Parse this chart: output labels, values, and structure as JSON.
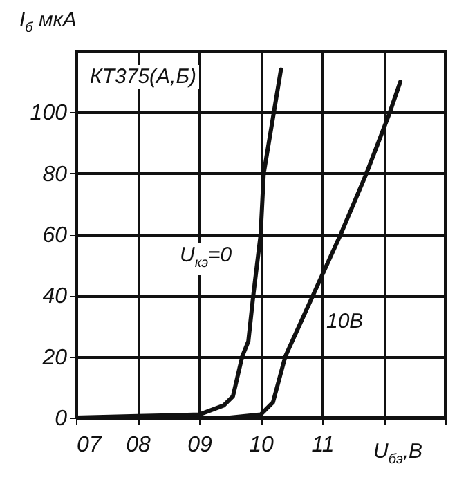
{
  "chart_data": {
    "type": "line",
    "annotations": [
      "КТ375(А,Б)"
    ],
    "xlabel": "U$_{бэ}$,В",
    "ylabel": "I$_{б}$ мкА",
    "xlim": [
      7,
      13
    ],
    "xticks": [
      {
        "value": 7,
        "label": "07"
      },
      {
        "value": 8,
        "label": "08"
      },
      {
        "value": 9,
        "label": "09"
      },
      10,
      11,
      {
        "value": 12,
        "label": null
      },
      {
        "value": 13,
        "label": null
      }
    ],
    "ylim": [
      0,
      120
    ],
    "yticks": [
      0,
      20,
      40,
      60,
      80,
      100
    ],
    "grid": true,
    "marker": "none",
    "line_style": "solid",
    "series": [
      {
        "name": "U$_{кэ}$=0",
        "color": "#111111",
        "x": [
          7,
          8,
          9,
          9.4,
          9.55,
          9.7,
          9.8,
          9.88,
          10,
          10.05,
          10.33
        ],
        "values": [
          0,
          0.5,
          1,
          4,
          7,
          20,
          25,
          40,
          60,
          80,
          114
        ]
      },
      {
        "name": "10В",
        "color": "#111111",
        "x": [
          9.5,
          10,
          10.2,
          10.4,
          10.85,
          11.3,
          11.72,
          12.1,
          12.27
        ],
        "values": [
          0,
          1,
          5,
          20,
          40,
          60,
          80,
          100,
          110
        ]
      }
    ]
  }
}
